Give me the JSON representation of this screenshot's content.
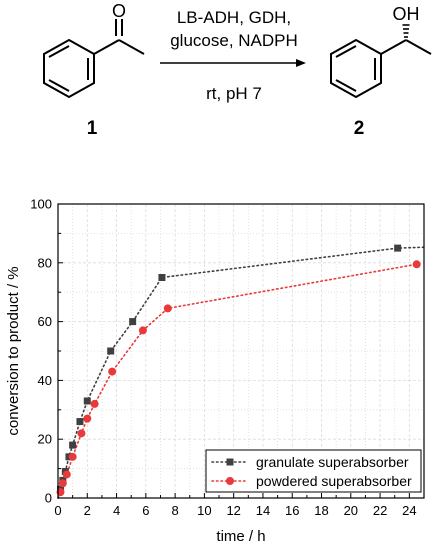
{
  "scheme": {
    "reagents_line1": "LB-ADH, GDH,",
    "reagents_line2": "glucose, NADPH",
    "conditions": "rt, pH 7",
    "compound1_label": "1",
    "compound2_label": "2",
    "compound1_atom": "O",
    "compound2_atom": "OH"
  },
  "colors": {
    "granulate": "#404040",
    "powdered": "#e8393b",
    "grid": "#dcdcdc",
    "axis": "#000000"
  },
  "chart_data": {
    "type": "scatter",
    "title": "",
    "xlabel": "time / h",
    "ylabel": "conversion to product / %",
    "xlim": [
      0,
      25
    ],
    "ylim": [
      0,
      100
    ],
    "xticks": [
      "0",
      "2",
      "4",
      "6",
      "8",
      "10",
      "12",
      "14",
      "16",
      "18",
      "20",
      "22",
      "24"
    ],
    "yticks": [
      "0",
      "20",
      "40",
      "60",
      "80",
      "100"
    ],
    "grid": true,
    "legend_position": "bottom-right",
    "series": [
      {
        "name": "granulate superabsorber",
        "marker": "square",
        "line": "dotted",
        "points": [
          [
            0,
            0
          ],
          [
            0.17,
            3
          ],
          [
            0.33,
            6
          ],
          [
            0.5,
            9
          ],
          [
            0.75,
            14
          ],
          [
            1,
            18
          ],
          [
            1.5,
            26
          ],
          [
            2,
            33
          ],
          [
            3.6,
            50
          ],
          [
            5.1,
            60
          ],
          [
            7.1,
            75
          ],
          [
            23.2,
            85
          ],
          [
            25,
            85.3
          ]
        ]
      },
      {
        "name": "powdered superabsorber",
        "marker": "circle",
        "line": "dotted",
        "points": [
          [
            0,
            0
          ],
          [
            0.17,
            2
          ],
          [
            0.33,
            5
          ],
          [
            0.6,
            8
          ],
          [
            1,
            14
          ],
          [
            1.6,
            22
          ],
          [
            2,
            27
          ],
          [
            2.5,
            32
          ],
          [
            3.7,
            43
          ],
          [
            5.8,
            57
          ],
          [
            7.5,
            64.5
          ],
          [
            24.5,
            79.5
          ]
        ]
      }
    ]
  }
}
